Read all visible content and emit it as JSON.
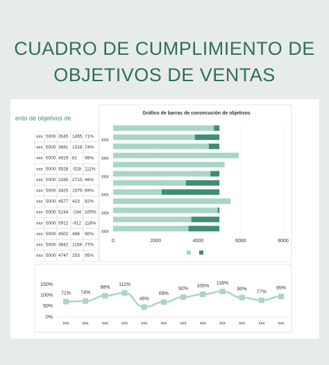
{
  "header": {
    "title_lines": [
      "CUADRO DE CUMPLIMIENTO DE",
      "OBJETIVOS DE VENTAS"
    ]
  },
  "table": {
    "caption": "ento de objetivos de",
    "rows": [
      [
        "xxx",
        "5000",
        "3545",
        "1455",
        "71%"
      ],
      [
        "xxx",
        "5000",
        "3681",
        "1319",
        "74%"
      ],
      [
        "xxx",
        "5000",
        "4919",
        "81",
        "98%"
      ],
      [
        "xxx",
        "5000",
        "5528",
        "-528",
        "111%"
      ],
      [
        "xxx",
        "5000",
        "2285",
        "2715",
        "46%"
      ],
      [
        "xxx",
        "5000",
        "3425",
        "1575",
        "69%"
      ],
      [
        "xxx",
        "5000",
        "4577",
        "423",
        "92%"
      ],
      [
        "xxx",
        "5000",
        "5244",
        "-244",
        "105%"
      ],
      [
        "xxx",
        "5000",
        "5912",
        "-912",
        "118%"
      ],
      [
        "xxx",
        "5000",
        "4502",
        "498",
        "90%"
      ],
      [
        "xxx",
        "5000",
        "3842",
        "1158",
        "77%"
      ],
      [
        "xxx",
        "5000",
        "4747",
        "253",
        "95%"
      ]
    ]
  },
  "chart_data": [
    {
      "type": "hbar",
      "title": "Gráfico de barras de consecución de objetivos",
      "stacked": true,
      "categories": [
        null,
        "xxx",
        null,
        "xxx",
        null,
        "xxx",
        null,
        "xxx",
        null,
        "xxx",
        null,
        "xxx"
      ],
      "series": [
        {
          "color": "#a9d6c3",
          "values": [
            4747,
            3842,
            4502,
            5912,
            5244,
            4577,
            3425,
            2285,
            5528,
            4919,
            3681,
            3545
          ]
        },
        {
          "color": "#3e8e6f",
          "values": [
            253,
            1158,
            498,
            null,
            null,
            423,
            1575,
            2715,
            null,
            81,
            1319,
            1455
          ]
        }
      ],
      "xlim": [
        0,
        8000
      ],
      "xticks": [
        0,
        2000,
        4000,
        6000,
        8000
      ],
      "legend": "bottom"
    },
    {
      "type": "line",
      "color": "#a9d6c3",
      "categories": [
        "xxx",
        "xxx",
        "xxx",
        "xxx",
        "xxx",
        "xxx",
        "xxx",
        "xxx",
        "xxx",
        "xxx",
        "xxx",
        "xxx"
      ],
      "values": [
        71,
        74,
        98,
        111,
        46,
        69,
        92,
        105,
        118,
        90,
        77,
        95
      ],
      "value_labels": [
        "71%",
        "74%",
        "98%",
        "111%",
        "46%",
        "69%",
        "92%",
        "105%",
        "118%",
        "90%",
        "77%",
        "95%"
      ],
      "ylim": [
        0,
        150
      ],
      "yticks": [
        {
          "value": 0,
          "label": "0%"
        },
        {
          "value": 50,
          "label": "50%"
        },
        {
          "value": 100,
          "label": "100%"
        },
        {
          "value": 150,
          "label": "150%"
        }
      ]
    }
  ]
}
